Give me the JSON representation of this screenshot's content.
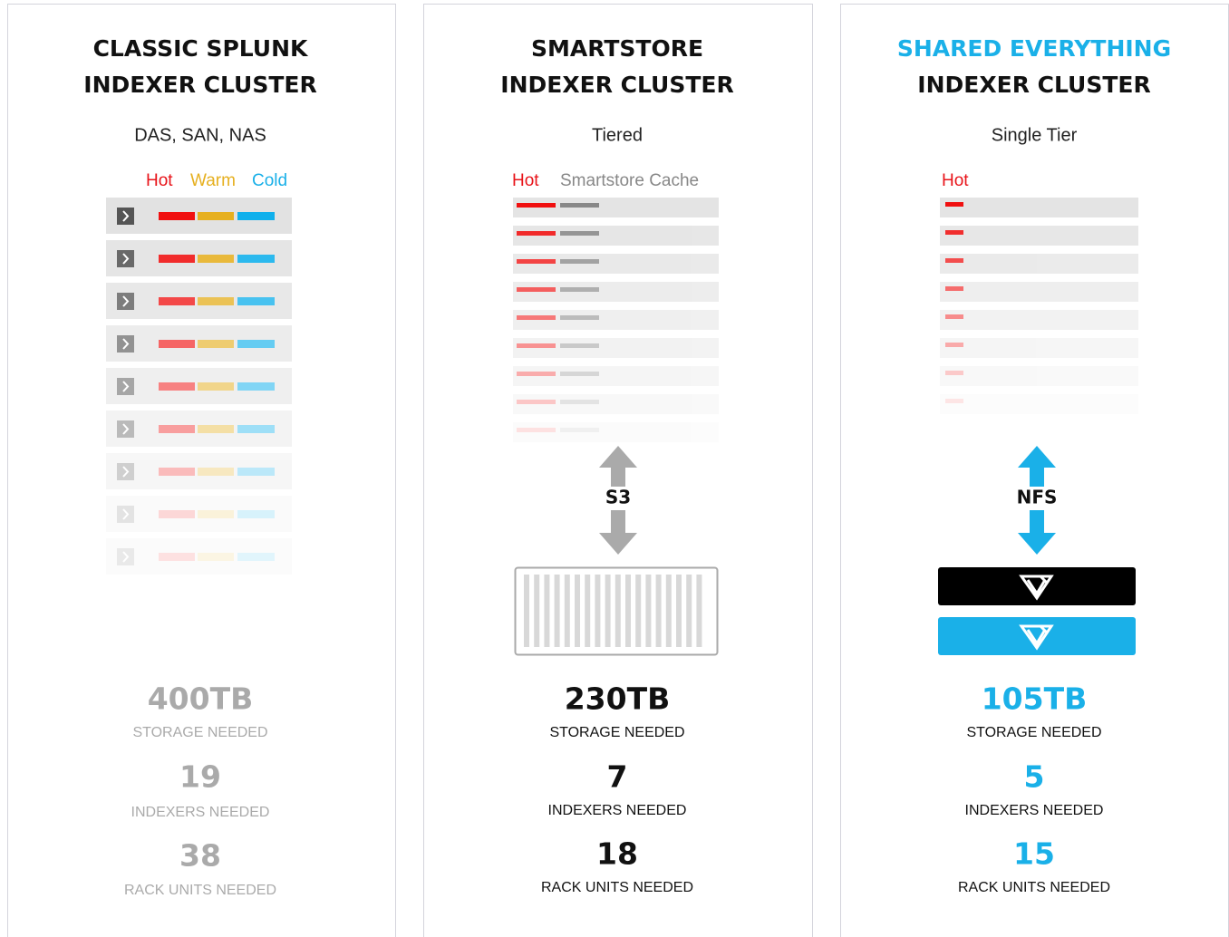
{
  "panels": [
    {
      "title_line1": "CLASSIC SPLUNK",
      "title_line2": "INDEXER CLUSTER",
      "subtitle": "DAS, SAN, NAS",
      "legend": [
        "Hot",
        "Warm",
        "Cold"
      ],
      "stats": [
        {
          "value": "400TB",
          "label": "STORAGE NEEDED"
        },
        {
          "value": "19",
          "label": "INDEXERS NEEDED"
        },
        {
          "value": "38",
          "label": "RACK UNITS NEEDED"
        }
      ]
    },
    {
      "title_line1": "SMARTSTORE",
      "title_line2": "INDEXER CLUSTER",
      "subtitle": "Tiered",
      "legend": [
        "Hot",
        "Smartstore Cache"
      ],
      "protocol": "S3",
      "stats": [
        {
          "value": "230TB",
          "label": "STORAGE NEEDED"
        },
        {
          "value": "7",
          "label": "INDEXERS NEEDED"
        },
        {
          "value": "18",
          "label": "RACK UNITS NEEDED"
        }
      ]
    },
    {
      "title_line1": "SHARED EVERYTHING",
      "title_line2": "INDEXER CLUSTER",
      "subtitle": "Single Tier",
      "legend": [
        "Hot"
      ],
      "protocol": "NFS",
      "stats": [
        {
          "value": "105TB",
          "label": "STORAGE NEEDED"
        },
        {
          "value": "5",
          "label": "INDEXERS NEEDED"
        },
        {
          "value": "15",
          "label": "RACK UNITS NEEDED"
        }
      ]
    }
  ]
}
